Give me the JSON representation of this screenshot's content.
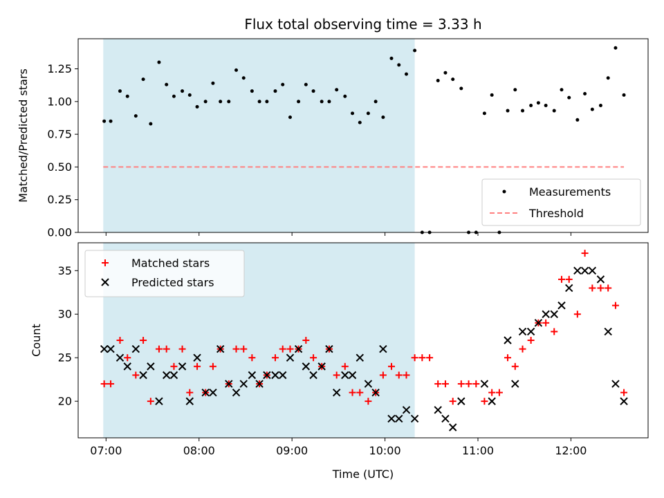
{
  "chart_data": [
    {
      "type": "scatter",
      "title": "Flux total observing time = 3.33 h",
      "ylabel": "Matched/Predicted stars",
      "ylim": [
        0,
        1.48
      ],
      "yticks": [
        "0.00",
        "0.25",
        "0.50",
        "0.75",
        "1.00",
        "1.25"
      ],
      "x_unit": "hours UTC",
      "xlim": [
        6.7,
        12.83
      ],
      "shaded_span": {
        "x_start": 6.97,
        "x_end": 10.32,
        "color": "#add8e6"
      },
      "legend": {
        "placement": "lower-right",
        "entries": [
          "Measurements",
          "Threshold"
        ]
      },
      "series": [
        {
          "name": "Measurements",
          "color": "#000000",
          "marker": "dot",
          "x": [
            6.98,
            7.05,
            7.15,
            7.23,
            7.32,
            7.4,
            7.48,
            7.57,
            7.65,
            7.73,
            7.82,
            7.9,
            7.98,
            8.07,
            8.15,
            8.23,
            8.32,
            8.4,
            8.48,
            8.57,
            8.65,
            8.73,
            8.82,
            8.9,
            8.98,
            9.07,
            9.15,
            9.23,
            9.32,
            9.4,
            9.48,
            9.57,
            9.65,
            9.73,
            9.82,
            9.9,
            9.98,
            10.07,
            10.15,
            10.23,
            10.32,
            10.4,
            10.48,
            10.57,
            10.65,
            10.73,
            10.82,
            10.9,
            10.98,
            11.07,
            11.15,
            11.23,
            11.32,
            11.4,
            11.48,
            11.57,
            11.65,
            11.73,
            11.82,
            11.9,
            11.98,
            12.07,
            12.15,
            12.23,
            12.32,
            12.4,
            12.48,
            12.57
          ],
          "y": [
            0.85,
            0.85,
            1.08,
            1.04,
            0.89,
            1.17,
            0.83,
            1.3,
            1.13,
            1.04,
            1.08,
            1.05,
            0.96,
            1.0,
            1.14,
            1.0,
            1.0,
            1.24,
            1.18,
            1.08,
            1.0,
            1.0,
            1.08,
            1.13,
            0.88,
            1.0,
            1.13,
            1.08,
            1.0,
            1.0,
            1.09,
            1.04,
            0.91,
            0.84,
            0.91,
            1.0,
            0.88,
            1.33,
            1.28,
            1.21,
            1.39,
            0.0,
            0.0,
            1.16,
            1.22,
            1.17,
            1.1,
            0.0,
            0.0,
            0.91,
            1.05,
            0.0,
            0.93,
            1.09,
            0.93,
            0.97,
            0.99,
            0.97,
            0.93,
            1.09,
            1.03,
            0.86,
            1.06,
            0.94,
            0.97,
            1.18,
            1.41,
            1.05
          ]
        },
        {
          "name": "Threshold",
          "color": "#ff7f7f",
          "style": "dashed",
          "x": [
            6.97,
            12.57
          ],
          "y": [
            0.5,
            0.5
          ]
        }
      ]
    },
    {
      "type": "scatter",
      "xlabel": "Time (UTC)",
      "ylabel": "Count",
      "ylim": [
        15.8,
        38.2
      ],
      "yticks": [
        "20",
        "25",
        "30",
        "35"
      ],
      "x_unit": "hours UTC",
      "xlim": [
        6.7,
        12.83
      ],
      "xticks": [
        "07:00",
        "08:00",
        "09:00",
        "10:00",
        "11:00",
        "12:00"
      ],
      "shaded_span": {
        "x_start": 6.97,
        "x_end": 10.32,
        "color": "#add8e6"
      },
      "legend": {
        "placement": "upper-left",
        "entries": [
          "Matched stars",
          "Predicted stars"
        ]
      },
      "series": [
        {
          "name": "Matched stars",
          "color": "#ff0000",
          "marker": "plus",
          "x": [
            6.98,
            7.05,
            7.15,
            7.23,
            7.32,
            7.4,
            7.48,
            7.57,
            7.65,
            7.73,
            7.82,
            7.9,
            7.98,
            8.07,
            8.15,
            8.23,
            8.32,
            8.4,
            8.48,
            8.57,
            8.65,
            8.73,
            8.82,
            8.9,
            8.98,
            9.07,
            9.15,
            9.23,
            9.32,
            9.4,
            9.48,
            9.57,
            9.65,
            9.73,
            9.82,
            9.9,
            9.98,
            10.07,
            10.15,
            10.23,
            10.32,
            10.4,
            10.48,
            10.57,
            10.65,
            10.73,
            10.82,
            10.9,
            10.98,
            11.07,
            11.15,
            11.23,
            11.32,
            11.4,
            11.48,
            11.57,
            11.65,
            11.73,
            11.82,
            11.9,
            11.98,
            12.07,
            12.15,
            12.23,
            12.32,
            12.4,
            12.48,
            12.57
          ],
          "y": [
            22,
            22,
            27,
            25,
            23,
            27,
            20,
            26,
            26,
            24,
            26,
            21,
            24,
            21,
            24,
            26,
            22,
            26,
            26,
            25,
            22,
            23,
            25,
            26,
            26,
            26,
            27,
            25,
            24,
            26,
            23,
            24,
            21,
            21,
            20,
            21,
            23,
            24,
            23,
            23,
            25,
            25,
            25,
            22,
            22,
            20,
            22,
            22,
            22,
            20,
            21,
            21,
            25,
            24,
            26,
            27,
            29,
            29,
            28,
            34,
            34,
            30,
            37,
            33,
            33,
            33,
            31,
            21
          ]
        },
        {
          "name": "Predicted stars",
          "color": "#000000",
          "marker": "x",
          "x": [
            6.98,
            7.05,
            7.15,
            7.23,
            7.32,
            7.4,
            7.48,
            7.57,
            7.65,
            7.73,
            7.82,
            7.9,
            7.98,
            8.07,
            8.15,
            8.23,
            8.32,
            8.4,
            8.48,
            8.57,
            8.65,
            8.73,
            8.82,
            8.9,
            8.98,
            9.07,
            9.15,
            9.23,
            9.32,
            9.4,
            9.48,
            9.57,
            9.65,
            9.73,
            9.82,
            9.9,
            9.98,
            10.07,
            10.15,
            10.23,
            10.32,
            10.57,
            10.65,
            10.73,
            10.82,
            11.07,
            11.15,
            11.32,
            11.4,
            11.48,
            11.57,
            11.65,
            11.73,
            11.82,
            11.9,
            11.98,
            12.07,
            12.15,
            12.23,
            12.32,
            12.4,
            12.48,
            12.57
          ],
          "y": [
            26,
            26,
            25,
            24,
            26,
            23,
            24,
            20,
            23,
            23,
            24,
            20,
            25,
            21,
            21,
            26,
            22,
            21,
            22,
            23,
            22,
            23,
            23,
            23,
            25,
            26,
            24,
            23,
            24,
            26,
            21,
            23,
            23,
            25,
            22,
            21,
            26,
            18,
            18,
            19,
            18,
            19,
            18,
            17,
            20,
            22,
            20,
            27,
            22,
            28,
            28,
            29,
            30,
            30,
            31,
            33,
            35,
            35,
            35,
            34,
            28,
            22,
            20
          ]
        }
      ]
    }
  ]
}
